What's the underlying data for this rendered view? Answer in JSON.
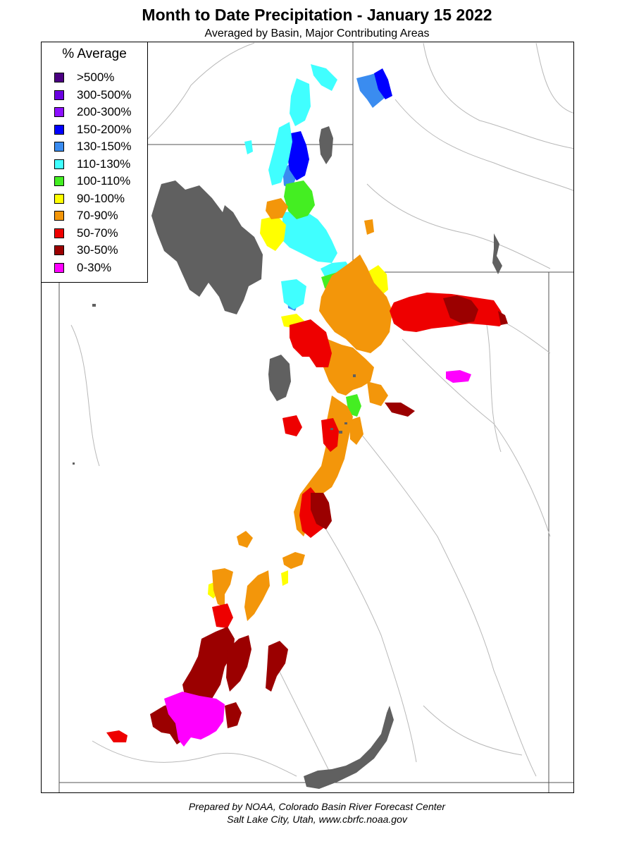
{
  "title": "Month to Date Precipitation - January 15 2022",
  "subtitle": "Averaged by Basin, Major Contributing Areas",
  "legend": {
    "title": "% Average",
    "items": [
      {
        "label": ">500%",
        "color": "#4b0082"
      },
      {
        "label": "300-500%",
        "color": "#6a00e0"
      },
      {
        "label": "200-300%",
        "color": "#8c10ff"
      },
      {
        "label": "150-200%",
        "color": "#0000ff"
      },
      {
        "label": "130-150%",
        "color": "#3a8cf0"
      },
      {
        "label": "110-130%",
        "color": "#40ffff"
      },
      {
        "label": "100-110%",
        "color": "#44ee22"
      },
      {
        "label": "90-100%",
        "color": "#ffff00"
      },
      {
        "label": "70-90%",
        "color": "#f3960a"
      },
      {
        "label": "50-70%",
        "color": "#ee0000"
      },
      {
        "label": "30-50%",
        "color": "#9b0000"
      },
      {
        "label": "0-30%",
        "color": "#ff00ff"
      }
    ]
  },
  "colors": {
    "water": "#606060",
    "boundary": "#888888",
    "river": "#b8b8b8",
    "state_line": "#555555"
  },
  "credits": {
    "line1": "Prepared by NOAA, Colorado Basin River Forecast Center",
    "line2": "Salt Lake City, Utah, www.cbrfc.noaa.gov"
  }
}
